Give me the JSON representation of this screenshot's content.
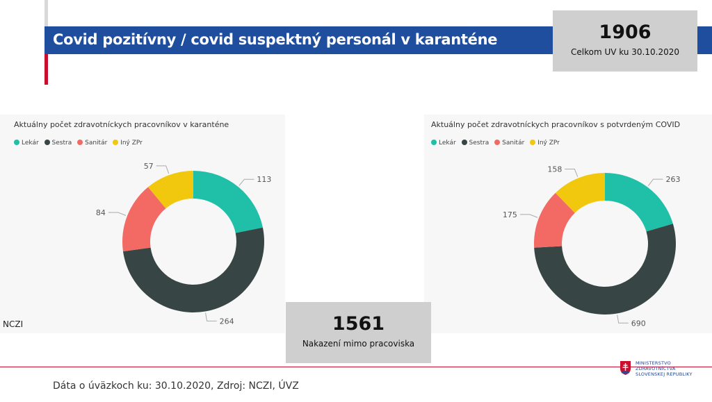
{
  "header": {
    "title": "Covid pozitívny / covid suspektný personál v karanténe"
  },
  "total_box": {
    "value": "1906",
    "label": "Celkom UV ku 30.10.2020"
  },
  "outside_box": {
    "value": "1561",
    "label": "Nakazení mimo pracoviska"
  },
  "source_tag": "NCZI",
  "footer": {
    "note": "Dáta o úväzkoch ku: 30.10.2020, Zdroj: NCZI, ÚVZ"
  },
  "ministry": {
    "line1": "MINISTERSTVO",
    "line2": "ZDRAVOTNÍCTVA",
    "line3": "SLOVENSKEJ REPUBLIKY"
  },
  "colors": {
    "Lekár": "#1fbfa8",
    "Sestra": "#374545",
    "Sanitár": "#f26a63",
    "Iný ZPr": "#f2c80f"
  },
  "chart_data": [
    {
      "type": "pie",
      "variant": "donut",
      "title": "Aktuálny počet zdravotníckych pracovníkov v karanténe",
      "categories": [
        "Lekár",
        "Sestra",
        "Sanitár",
        "Iný ZPr"
      ],
      "values": [
        113,
        264,
        84,
        57
      ],
      "legend": "top-left"
    },
    {
      "type": "pie",
      "variant": "donut",
      "title": "Aktuálny počet zdravotníckych pracovníkov s potvrdeným COVID",
      "categories": [
        "Lekár",
        "Sestra",
        "Sanitár",
        "Iný ZPr"
      ],
      "values": [
        263,
        690,
        175,
        158
      ],
      "legend": "top-left"
    }
  ]
}
